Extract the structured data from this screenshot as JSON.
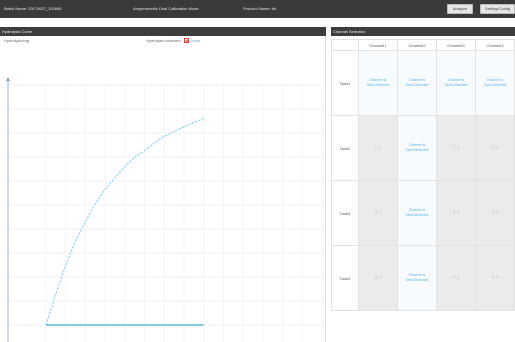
{
  "topbar": {
    "batch": "Batch Name: 20170627_102846",
    "mode": "Amperometric Dual Calibration Mode",
    "protocol": "Protocol Name: ##",
    "analyze_btn": "Analyze",
    "settings_btn": "Setting/Config"
  },
  "chart_panel": {
    "title": "Hydrolysis Curve",
    "y_label": "Hydrolysis/mg",
    "legend_label": "Hydrolysis selected:",
    "legend_link": "None",
    "colors": {
      "curve": "#8ed3ec",
      "baseline": "#5fb8d9"
    }
  },
  "chart_data": {
    "type": "line",
    "title": "",
    "xlabel": "",
    "ylabel": "Hydrolysis/mg",
    "xlim": [
      0,
      14
    ],
    "ylim": [
      0,
      500
    ],
    "grid": true,
    "series": [
      {
        "x": [
          0,
          0.5,
          1,
          1.5,
          2,
          2.5,
          3,
          3.5,
          4,
          4.5,
          5,
          5.5,
          6,
          6.5,
          7,
          7.5,
          8
        ],
        "values": [
          0,
          65,
          125,
          175,
          215,
          253,
          283,
          307,
          330,
          350,
          363,
          380,
          393,
          403,
          413,
          422,
          430
        ]
      },
      {
        "x": [
          0,
          8
        ],
        "values": [
          0,
          0
        ]
      }
    ]
  },
  "channel_panel": {
    "title": "Channel Selection",
    "columns": [
      "Channel1",
      "Channel2",
      "Channel3",
      "Channel4"
    ],
    "rows": [
      {
        "label": "Tank1",
        "cells": [
          {
            "state": "active",
            "text": "Channel is Tank1Selected"
          },
          {
            "state": "active",
            "text": "Channel is Tank1Selected"
          },
          {
            "state": "active",
            "text": "Channel is Tank1Selected"
          },
          {
            "state": "active",
            "text": "Channel is Tank1Selected"
          }
        ]
      },
      {
        "label": "Tank2",
        "cells": [
          {
            "state": "empty",
            "text": "2-1"
          },
          {
            "state": "active",
            "text": "Channel is Tank2Selected"
          },
          {
            "state": "empty",
            "text": "2-3"
          },
          {
            "state": "empty",
            "text": "2-4"
          }
        ]
      },
      {
        "label": "Tank3",
        "cells": [
          {
            "state": "empty",
            "text": "3-1"
          },
          {
            "state": "active",
            "text": "Channel is Tank3Selected"
          },
          {
            "state": "empty",
            "text": "3-3"
          },
          {
            "state": "empty",
            "text": "3-4"
          }
        ]
      },
      {
        "label": "Tank4",
        "cells": [
          {
            "state": "empty",
            "text": "4-1"
          },
          {
            "state": "active",
            "text": "Channel is Tank4Selected"
          },
          {
            "state": "empty",
            "text": "4-3"
          },
          {
            "state": "empty",
            "text": "4-4"
          }
        ]
      }
    ]
  }
}
